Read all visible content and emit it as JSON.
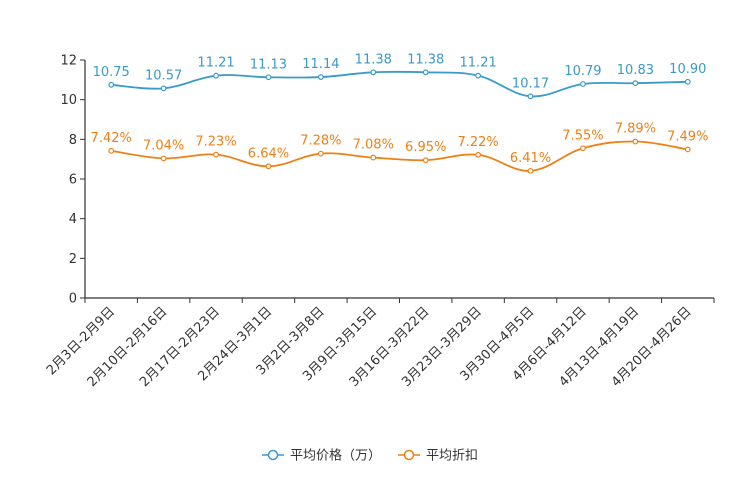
{
  "chart_data": {
    "type": "line",
    "categories": [
      "2月3日-2月9日",
      "2月10日-2月16日",
      "2月17日-2月23日",
      "2月24日-3月1日",
      "3月2日-3月8日",
      "3月9日-3月15日",
      "3月16日-3月22日",
      "3月23日-3月29日",
      "3月30日-4月5日",
      "4月6日-4月12日",
      "4月13日-4月19日",
      "4月20日-4月26日"
    ],
    "ylim": [
      0,
      12
    ],
    "yticks": [
      0,
      2,
      4,
      6,
      8,
      10,
      12
    ],
    "series": [
      {
        "name": "平均价格（万）",
        "color": "#3a9ac9",
        "values": [
          10.75,
          10.57,
          11.21,
          11.13,
          11.14,
          11.38,
          11.38,
          11.21,
          10.17,
          10.79,
          10.83,
          10.9
        ],
        "labels": [
          "10.75",
          "10.57",
          "11.21",
          "11.13",
          "11.14",
          "11.38",
          "11.38",
          "11.21",
          "10.17",
          "10.79",
          "10.83",
          "10.90"
        ]
      },
      {
        "name": "平均折扣",
        "color": "#f07f16",
        "values": [
          7.42,
          7.04,
          7.23,
          6.64,
          7.28,
          7.08,
          6.95,
          7.22,
          6.41,
          7.55,
          7.89,
          7.49
        ],
        "labels": [
          "7.42%",
          "7.04%",
          "7.23%",
          "6.64%",
          "7.28%",
          "7.08%",
          "6.95%",
          "7.22%",
          "6.41%",
          "7.55%",
          "7.89%",
          "7.49%"
        ]
      }
    ],
    "legend_position": "bottom"
  }
}
